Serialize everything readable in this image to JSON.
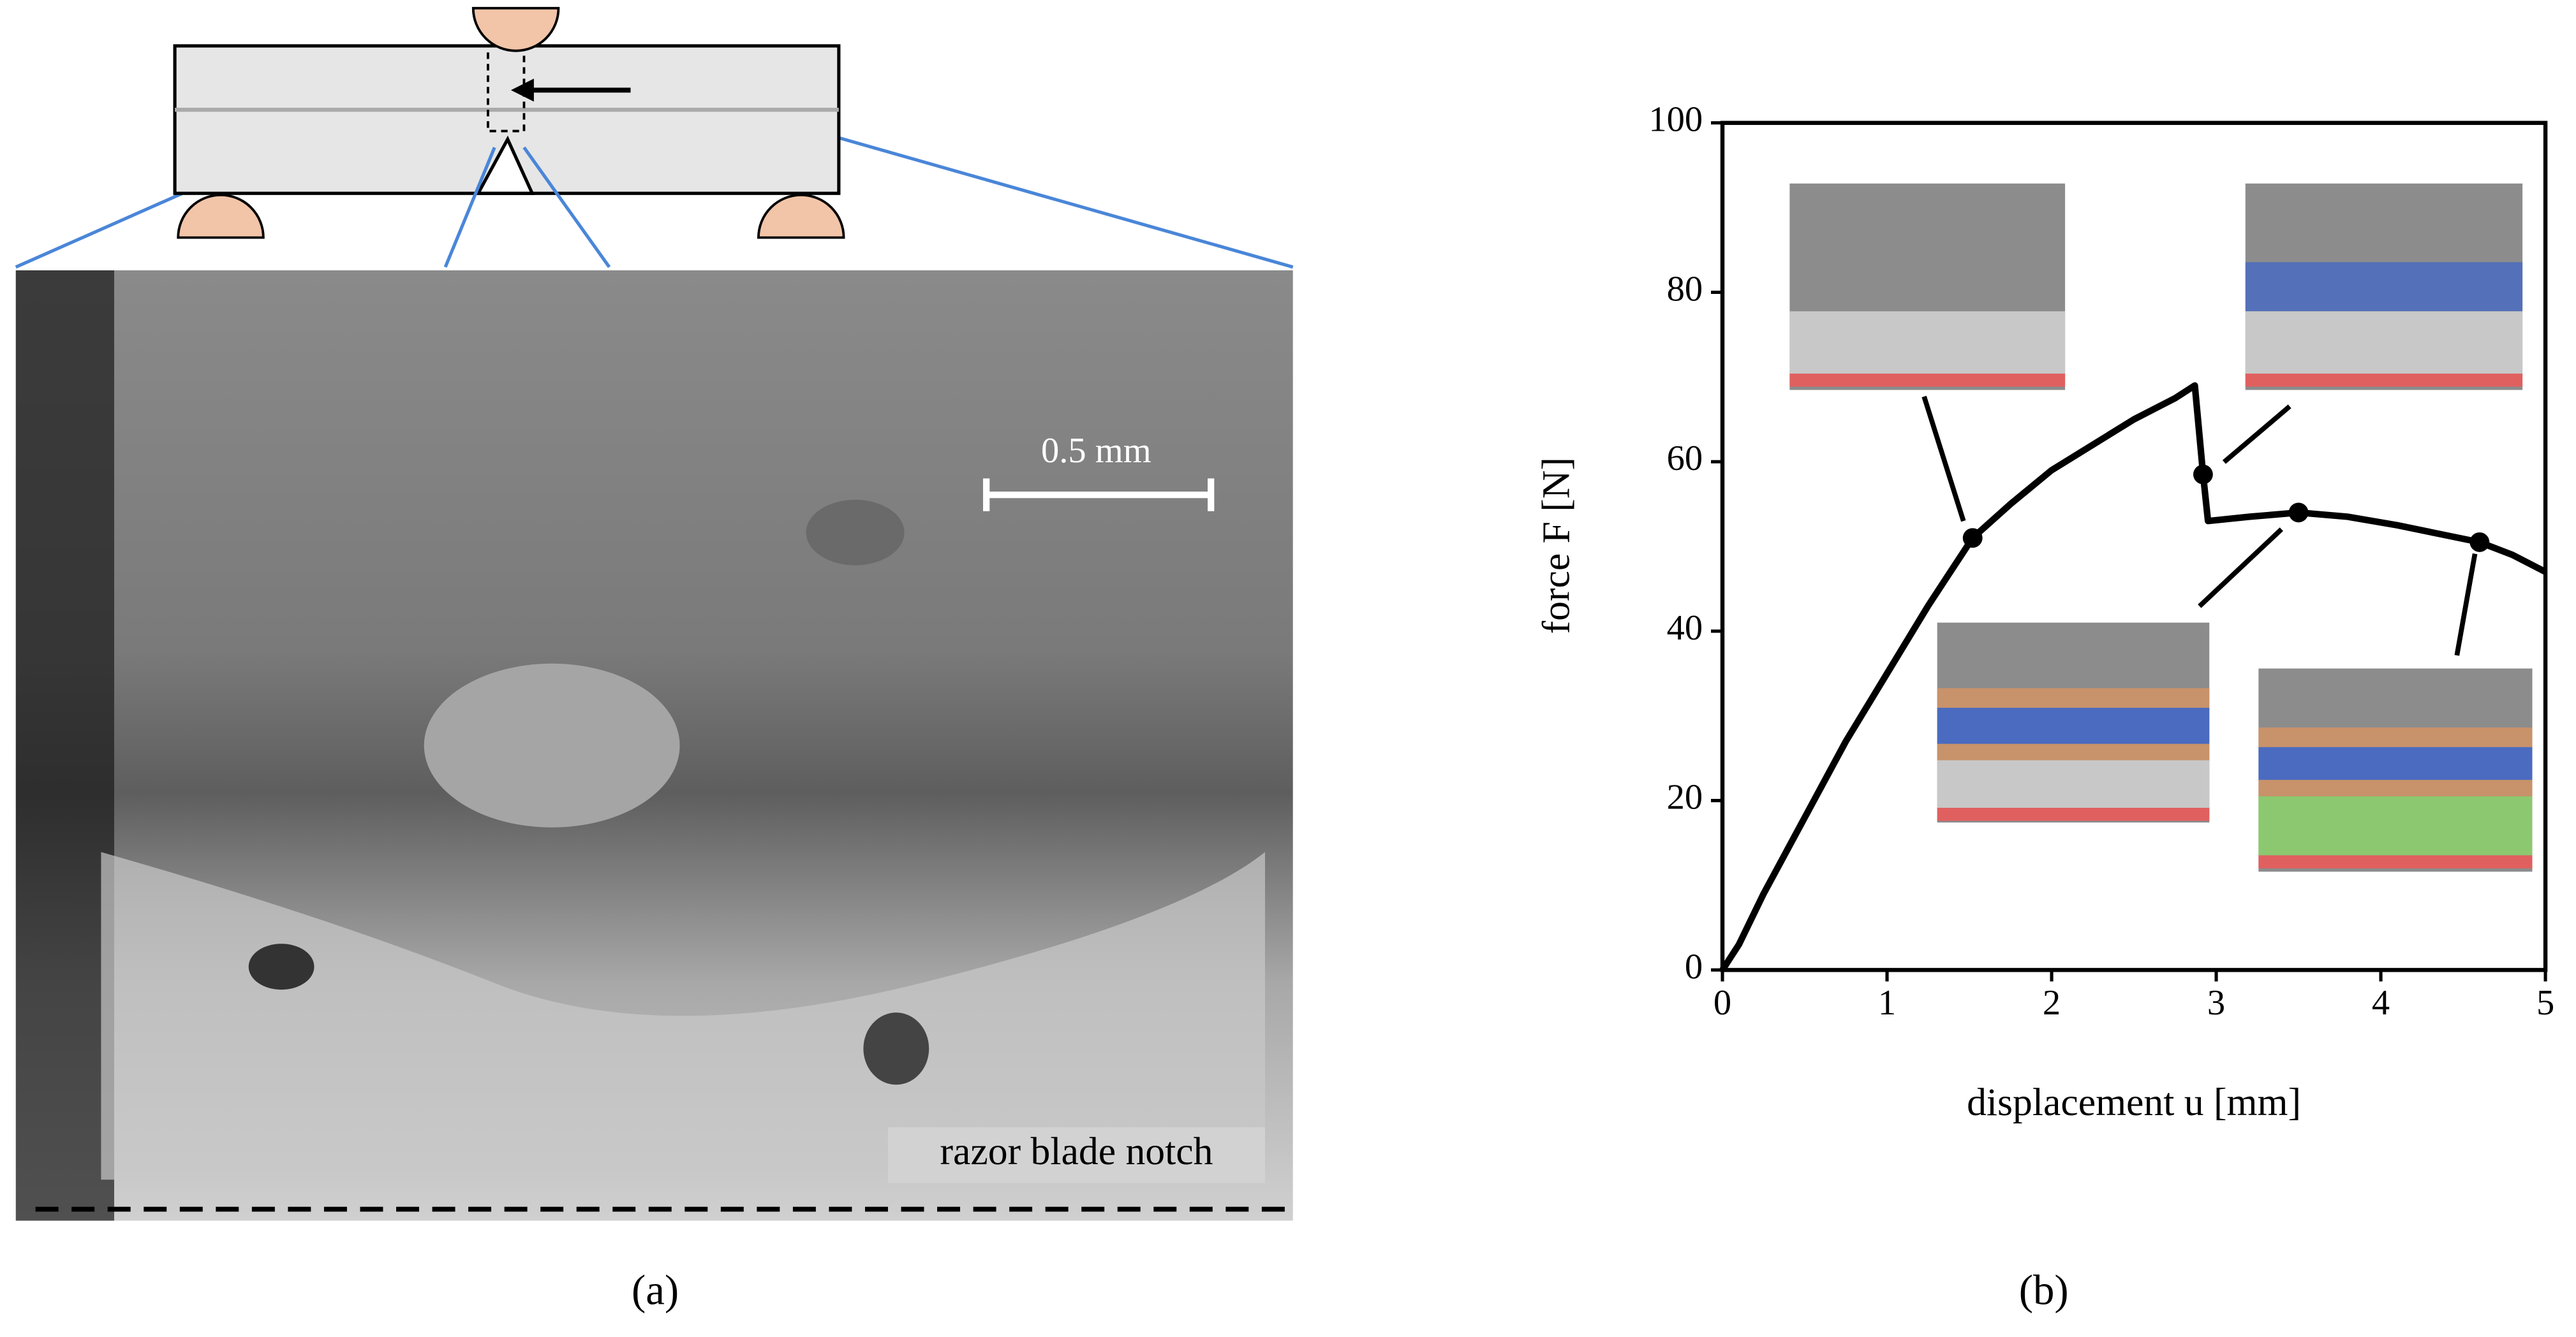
{
  "panel_a": {
    "label": "(a)",
    "scale_bar": "0.5 mm",
    "annotation": "razor blade notch"
  },
  "panel_b": {
    "label": "(b)"
  },
  "chart_data": {
    "type": "line",
    "x_label": "displacement u [mm]",
    "y_label": "force F [N]",
    "xlim": [
      0,
      5
    ],
    "ylim": [
      0,
      100
    ],
    "xticks": [
      0,
      1,
      2,
      3,
      4,
      5
    ],
    "yticks": [
      0,
      20,
      40,
      60,
      80,
      100
    ],
    "series": [
      {
        "color": "#000000",
        "x": [
          0,
          0.1,
          0.25,
          0.5,
          0.75,
          1.0,
          1.25,
          1.52,
          1.75,
          2.0,
          2.25,
          2.5,
          2.75,
          2.87,
          2.92,
          2.95,
          3.2,
          3.5,
          3.8,
          4.1,
          4.35,
          4.6,
          4.8,
          5.0
        ],
        "values": [
          0,
          3,
          9,
          18,
          27,
          35,
          43,
          51,
          55,
          59,
          62,
          65,
          67.5,
          69,
          58.5,
          53,
          53.5,
          54,
          53.5,
          52.5,
          51.5,
          50.5,
          49,
          47
        ]
      }
    ],
    "markers": {
      "color": "#000000",
      "x": [
        1.52,
        2.92,
        3.5,
        4.6
      ],
      "values": [
        51,
        58.5,
        54,
        50.5
      ]
    }
  }
}
